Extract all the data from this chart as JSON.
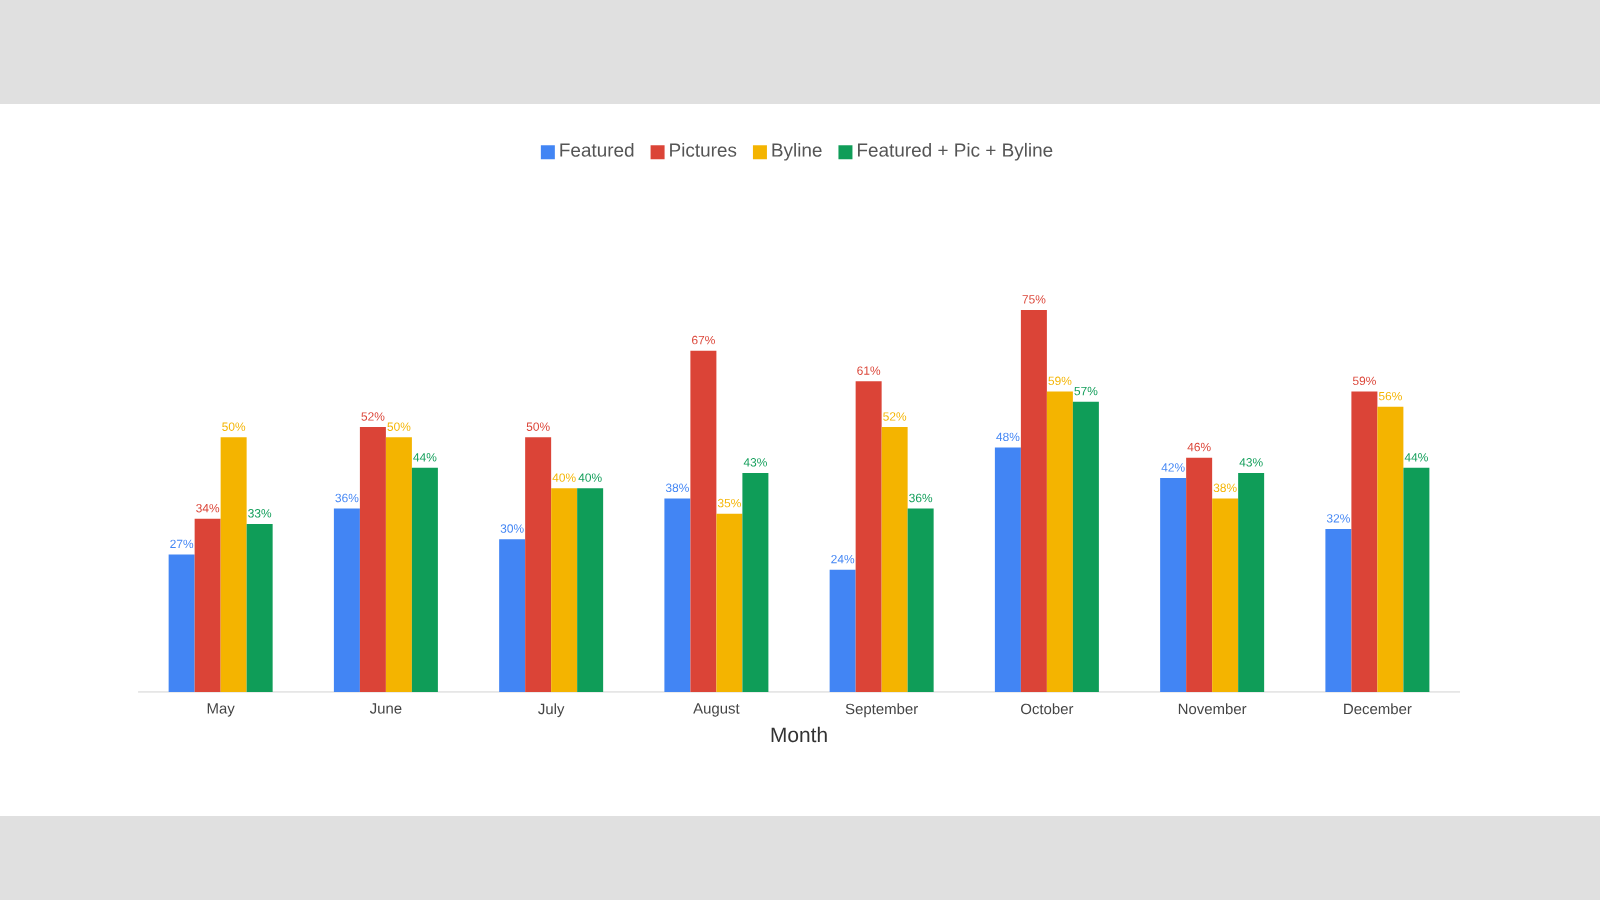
{
  "chart_data": {
    "type": "bar",
    "xlabel": "Month",
    "categories": [
      "May",
      "June",
      "July",
      "August",
      "September",
      "October",
      "November",
      "December"
    ],
    "legend": "top",
    "series": [
      {
        "name": "Featured",
        "color": "#4285f4",
        "values": [
          27,
          36,
          30,
          38,
          24,
          48,
          42,
          32
        ],
        "value_labels": [
          "27%",
          "36%",
          "30%",
          "38%",
          "24%",
          "48%",
          "42%",
          "32%"
        ]
      },
      {
        "name": "Pictures",
        "color": "#db4437",
        "values": [
          34,
          52,
          50,
          67,
          61,
          75,
          46,
          59
        ],
        "value_labels": [
          "34%",
          "52%",
          "50%",
          "67%",
          "61%",
          "75%",
          "46%",
          "59%"
        ]
      },
      {
        "name": "Byline",
        "color": "#f4b400",
        "values": [
          50,
          50,
          40,
          35,
          52,
          59,
          38,
          56
        ],
        "value_labels": [
          "50%",
          "50%",
          "40%",
          "35%",
          "52%",
          "59%",
          "38%",
          "56%"
        ]
      },
      {
        "name": "Featured + Pic + Byline",
        "color": "#0f9d58",
        "values": [
          33,
          44,
          40,
          43,
          36,
          57,
          43,
          44
        ],
        "value_labels": [
          "33%",
          "44%",
          "40%",
          "43%",
          "36%",
          "57%",
          "43%",
          "44%"
        ]
      }
    ]
  }
}
